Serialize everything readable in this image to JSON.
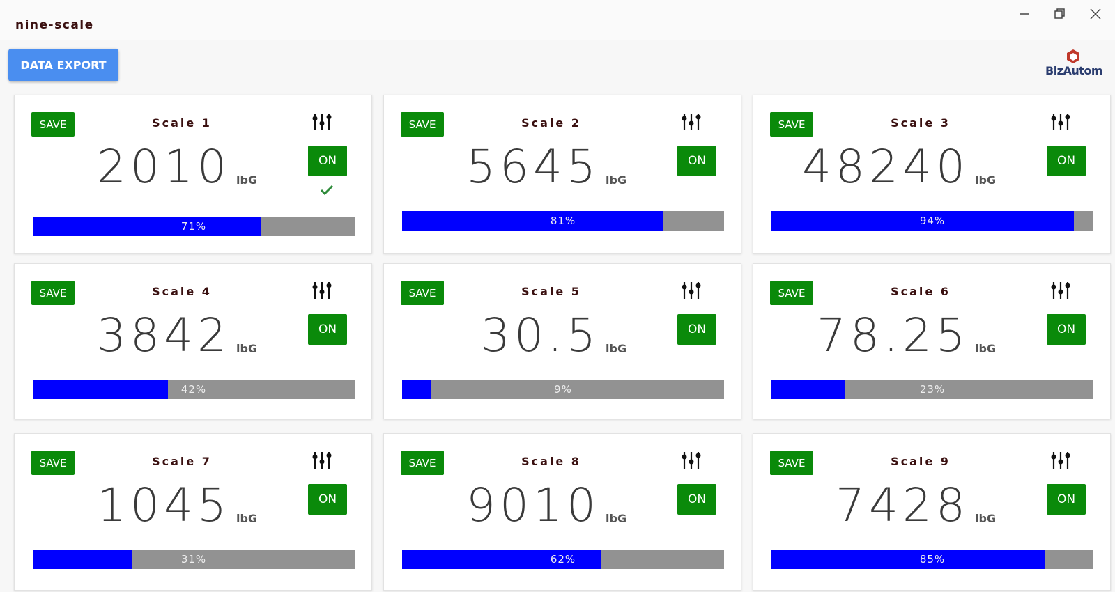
{
  "window": {
    "title": "nine-scale"
  },
  "toolbar": {
    "export_button": "DATA EXPORT",
    "logo": "BizAutom"
  },
  "scales": [
    {
      "name": "Scale 1",
      "weight": "2010",
      "unit": "lbG",
      "save": "SAVE",
      "power": "ON",
      "checked": true,
      "progress": {
        "value": 71,
        "label": "71%"
      }
    },
    {
      "name": "Scale 2",
      "weight": "5645",
      "unit": "lbG",
      "save": "SAVE",
      "power": "ON",
      "checked": false,
      "progress": {
        "value": 81,
        "label": "81%"
      }
    },
    {
      "name": "Scale 3",
      "weight": "48240",
      "unit": "lbG",
      "save": "SAVE",
      "power": "ON",
      "checked": false,
      "progress": {
        "value": 94,
        "label": "94%"
      }
    },
    {
      "name": "Scale 4",
      "weight": "3842",
      "unit": "lbG",
      "save": "SAVE",
      "power": "ON",
      "checked": false,
      "progress": {
        "value": 42,
        "label": "42%"
      }
    },
    {
      "name": "Scale 5",
      "weight": "30.5",
      "unit": "lbG",
      "save": "SAVE",
      "power": "ON",
      "checked": false,
      "progress": {
        "value": 9,
        "label": "9%"
      }
    },
    {
      "name": "Scale 6",
      "weight": "78.25",
      "unit": "lbG",
      "save": "SAVE",
      "power": "ON",
      "checked": false,
      "progress": {
        "value": 23,
        "label": "23%"
      }
    },
    {
      "name": "Scale 7",
      "weight": "1045",
      "unit": "lbG",
      "save": "SAVE",
      "power": "ON",
      "checked": false,
      "progress": {
        "value": 31,
        "label": "31%"
      }
    },
    {
      "name": "Scale 8",
      "weight": "9010",
      "unit": "lbG",
      "save": "SAVE",
      "power": "ON",
      "checked": false,
      "progress": {
        "value": 62,
        "label": "62%"
      }
    },
    {
      "name": "Scale 9",
      "weight": "7428",
      "unit": "lbG",
      "save": "SAVE",
      "power": "ON",
      "checked": false,
      "progress": {
        "value": 85,
        "label": "85%"
      }
    }
  ]
}
